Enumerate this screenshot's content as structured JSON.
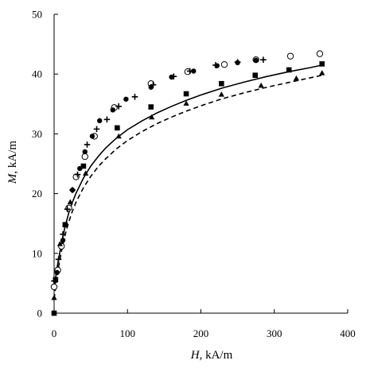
{
  "chart_data": {
    "type": "scatter",
    "title": "",
    "xlabel_symbol": "H",
    "xlabel_unit": ", kA/m",
    "ylabel_symbol": "M",
    "ylabel_unit": ", kA/m",
    "xlim": [
      0,
      400
    ],
    "ylim": [
      0,
      50
    ],
    "x_ticks": [
      0,
      100,
      200,
      300,
      400
    ],
    "y_ticks": [
      0,
      10,
      20,
      30,
      40,
      50
    ],
    "grid": false,
    "legend": "none",
    "series": [
      {
        "marker": "open-circle",
        "color": "#000000",
        "points": [
          [
            0,
            4.4
          ],
          [
            5,
            7.2
          ],
          [
            10,
            11.2
          ],
          [
            20,
            17.6
          ],
          [
            30,
            22.8
          ],
          [
            42,
            26.2
          ],
          [
            55,
            29.6
          ],
          [
            82,
            34.4
          ],
          [
            132,
            38.4
          ],
          [
            182,
            40.4
          ],
          [
            232,
            41.6
          ],
          [
            275,
            42.4
          ],
          [
            322,
            43.0
          ],
          [
            362,
            43.4
          ]
        ]
      },
      {
        "marker": "filled-circle",
        "color": "#000000",
        "points": [
          [
            0,
            0
          ],
          [
            4,
            6.8
          ],
          [
            12,
            12.2
          ],
          [
            25,
            20.6
          ],
          [
            35,
            24.2
          ],
          [
            42,
            27.0
          ],
          [
            52,
            29.6
          ],
          [
            62,
            32.2
          ],
          [
            80,
            34.0
          ],
          [
            98,
            35.8
          ],
          [
            132,
            37.8
          ],
          [
            160,
            39.5
          ],
          [
            190,
            40.5
          ],
          [
            222,
            41.4
          ],
          [
            250,
            41.9
          ],
          [
            275,
            42.3
          ]
        ]
      },
      {
        "marker": "plus",
        "color": "#000000",
        "points": [
          [
            0,
            5.4
          ],
          [
            6,
            9.0
          ],
          [
            12,
            13.2
          ],
          [
            18,
            17.4
          ],
          [
            25,
            20.6
          ],
          [
            32,
            23.2
          ],
          [
            45,
            28.2
          ],
          [
            58,
            30.8
          ],
          [
            72,
            32.4
          ],
          [
            88,
            34.6
          ],
          [
            110,
            36.2
          ],
          [
            135,
            38.2
          ],
          [
            163,
            39.6
          ],
          [
            185,
            40.5
          ],
          [
            220,
            41.5
          ],
          [
            250,
            42.0
          ],
          [
            285,
            42.4
          ]
        ]
      },
      {
        "marker": "filled-square",
        "color": "#000000",
        "fit": "solid",
        "points": [
          [
            0,
            0
          ],
          [
            2,
            5.6
          ],
          [
            15,
            14.8
          ],
          [
            40,
            24.6
          ],
          [
            86,
            31.0
          ],
          [
            132,
            34.5
          ],
          [
            180,
            36.7
          ],
          [
            228,
            38.4
          ],
          [
            274,
            39.8
          ],
          [
            320,
            40.7
          ],
          [
            365,
            41.7
          ]
        ]
      },
      {
        "marker": "filled-triangle",
        "color": "#000000",
        "fit": "dashed",
        "points": [
          [
            0,
            2.6
          ],
          [
            8,
            11.6
          ],
          [
            22,
            18.6
          ],
          [
            43,
            23.4
          ],
          [
            88,
            29.6
          ],
          [
            133,
            32.8
          ],
          [
            180,
            35.1
          ],
          [
            228,
            36.6
          ],
          [
            282,
            38.1
          ],
          [
            330,
            39.3
          ],
          [
            365,
            40.2
          ]
        ]
      }
    ],
    "fits": [
      {
        "style": "solid",
        "points": [
          [
            0,
            3.8
          ],
          [
            2,
            5.8
          ],
          [
            5,
            8.3
          ],
          [
            10,
            11.6
          ],
          [
            15,
            14.5
          ],
          [
            20,
            16.8
          ],
          [
            25,
            18.6
          ],
          [
            30,
            20.1
          ],
          [
            40,
            22.6
          ],
          [
            50,
            24.6
          ],
          [
            60,
            26.2
          ],
          [
            70,
            27.6
          ],
          [
            85,
            29.3
          ],
          [
            100,
            30.7
          ],
          [
            120,
            32.2
          ],
          [
            140,
            33.5
          ],
          [
            160,
            34.6
          ],
          [
            180,
            35.6
          ],
          [
            200,
            36.5
          ],
          [
            230,
            37.7
          ],
          [
            260,
            38.7
          ],
          [
            290,
            39.6
          ],
          [
            320,
            40.4
          ],
          [
            350,
            41.1
          ],
          [
            365,
            41.5
          ]
        ]
      },
      {
        "style": "dashed",
        "points": [
          [
            0,
            2.4
          ],
          [
            2,
            4.2
          ],
          [
            5,
            7.0
          ],
          [
            10,
            10.3
          ],
          [
            15,
            13.1
          ],
          [
            20,
            15.3
          ],
          [
            25,
            17.1
          ],
          [
            30,
            18.6
          ],
          [
            40,
            21.0
          ],
          [
            50,
            22.9
          ],
          [
            60,
            24.5
          ],
          [
            70,
            25.8
          ],
          [
            85,
            27.5
          ],
          [
            100,
            28.9
          ],
          [
            120,
            30.4
          ],
          [
            140,
            31.7
          ],
          [
            160,
            32.8
          ],
          [
            180,
            33.8
          ],
          [
            200,
            34.7
          ],
          [
            230,
            35.9
          ],
          [
            260,
            36.9
          ],
          [
            290,
            37.8
          ],
          [
            320,
            38.6
          ],
          [
            350,
            39.4
          ],
          [
            365,
            39.8
          ]
        ]
      }
    ]
  }
}
